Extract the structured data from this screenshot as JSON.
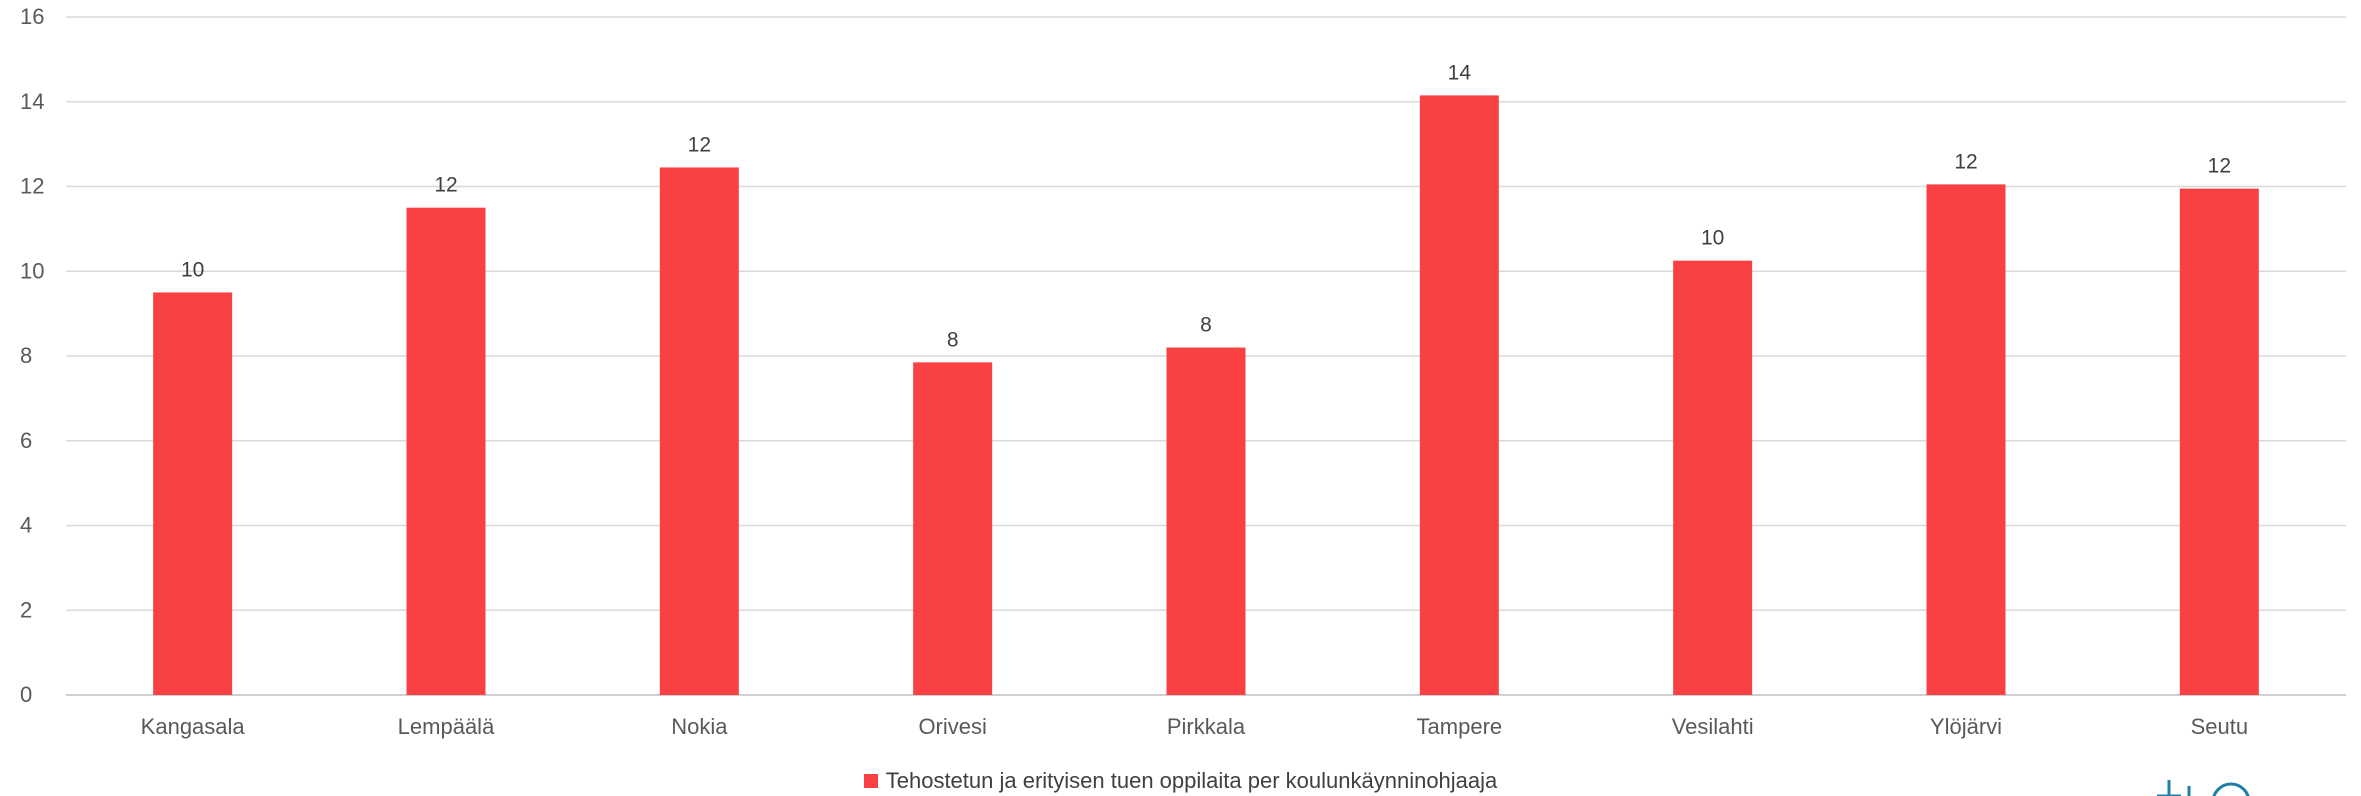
{
  "chart_data": {
    "type": "bar",
    "categories": [
      "Kangasala",
      "Lempäälä",
      "Nokia",
      "Orivesi",
      "Pirkkala",
      "Tampere",
      "Vesilahti",
      "Ylöjärvi",
      "Seutu"
    ],
    "series": [
      {
        "name": "Tehostetun ja erityisen tuen oppilaita per koulunkäynninohjaaja",
        "values": [
          9.5,
          11.5,
          12.45,
          7.85,
          8.2,
          14.15,
          10.25,
          12.05,
          11.95
        ],
        "data_labels": [
          "10",
          "12",
          "12",
          "8",
          "8",
          "14",
          "10",
          "12",
          "12"
        ]
      }
    ],
    "ylim": [
      0,
      16
    ],
    "yticks": [
      "0",
      "2",
      "4",
      "6",
      "8",
      "10",
      "12",
      "14",
      "16"
    ],
    "xlabel": "",
    "ylabel": "",
    "title": "",
    "grid": true,
    "legend_position": "bottom",
    "colors": {
      "bar": "#f94144",
      "grid": "#d9d9d9",
      "axis": "#bfbfbf",
      "logo": "#1f7fa6"
    }
  },
  "legend": {
    "label": "Tehostetun ja erityisen tuen oppilaita per koulunkäynninohjaaja"
  },
  "logo": {
    "icon": "organization-logo-icon"
  }
}
